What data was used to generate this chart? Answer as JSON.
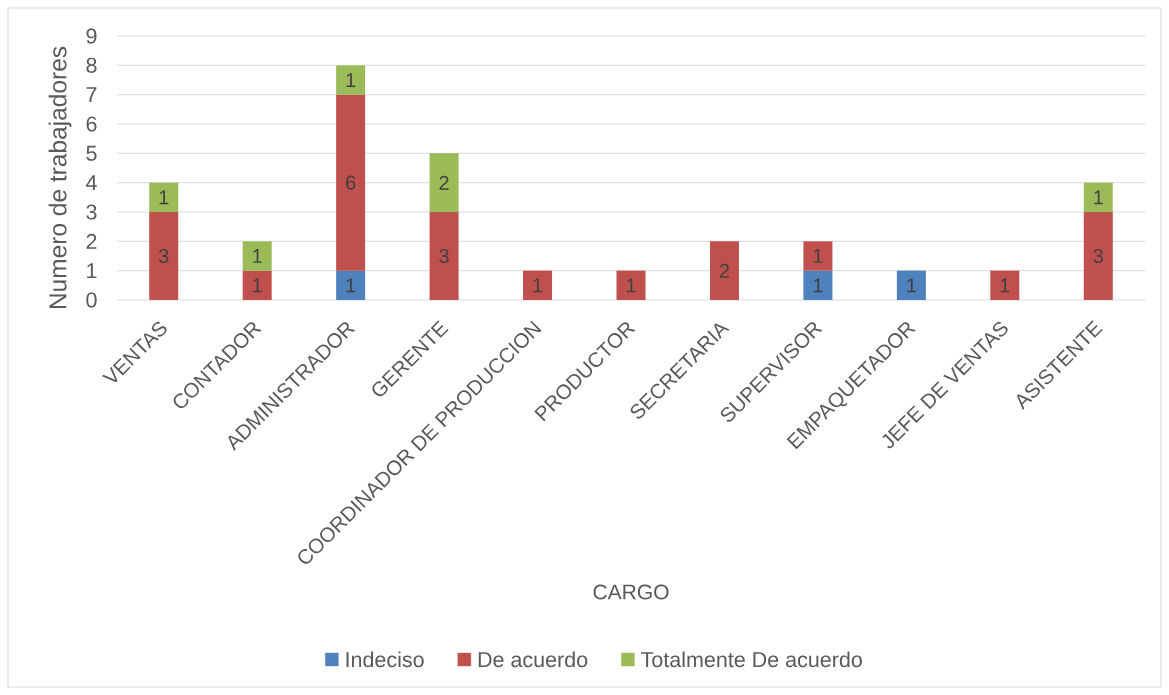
{
  "chart_data": {
    "type": "bar",
    "stacked": true,
    "xlabel": "CARGO",
    "ylabel": "Numero de trabajadores",
    "categories": [
      "VENTAS",
      "CONTADOR",
      "ADMINISTRADOR",
      "GERENTE",
      "COORDINADOR DE PRODUCCION",
      "PRODUCTOR",
      "SECRETARIA",
      "SUPERVISOR",
      "EMPAQUETADOR",
      "JEFE DE VENTAS",
      "ASISTENTE"
    ],
    "series": [
      {
        "name": "Indeciso",
        "color": "#4f81bd",
        "values": [
          null,
          null,
          1,
          null,
          null,
          null,
          null,
          1,
          1,
          null,
          null
        ]
      },
      {
        "name": "De acuerdo",
        "color": "#c0504d",
        "values": [
          3,
          1,
          6,
          3,
          1,
          1,
          2,
          1,
          null,
          1,
          3
        ]
      },
      {
        "name": "Totalmente De acuerdo",
        "color": "#9bbb59",
        "values": [
          1,
          1,
          1,
          2,
          null,
          null,
          null,
          null,
          null,
          null,
          1
        ]
      }
    ],
    "ylim": [
      0,
      9
    ],
    "yticks": [
      0,
      1,
      2,
      3,
      4,
      5,
      6,
      7,
      8,
      9
    ],
    "grid": "y",
    "legend": "bottom",
    "data_labels": true
  }
}
